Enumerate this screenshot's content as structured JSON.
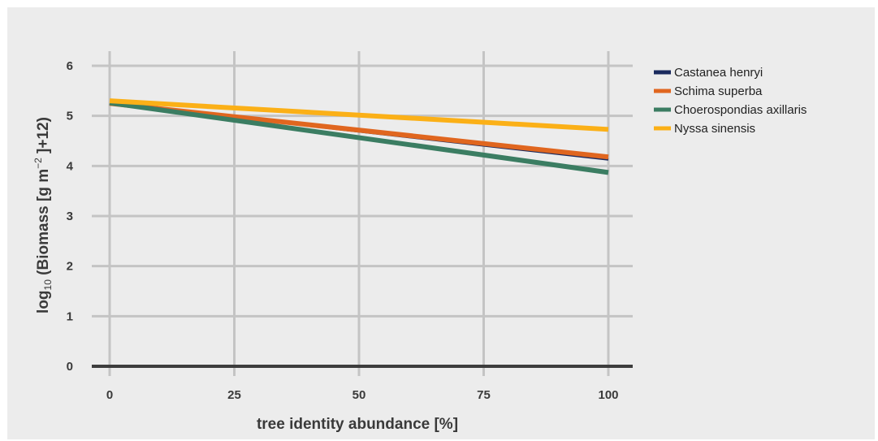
{
  "chart_data": {
    "type": "line",
    "xlabel": "tree identity abundance [%]",
    "ylabel_parts": {
      "log": "log",
      "base": "10",
      "open": " (Biomass [g m",
      "exp": "−2",
      "close": " ]+12)"
    },
    "xlim": [
      0,
      100
    ],
    "ylim": [
      0,
      6
    ],
    "x_ticks": [
      0,
      25,
      50,
      75,
      100
    ],
    "y_ticks": [
      0,
      1,
      2,
      3,
      4,
      5,
      6
    ],
    "x_tick_labels": [
      "0",
      "25",
      "50",
      "75",
      "100"
    ],
    "y_tick_labels": [
      "0",
      "1",
      "2",
      "3",
      "4",
      "5",
      "6"
    ],
    "grid": true,
    "legend_position": "right",
    "series": [
      {
        "name": "Castanea henryi",
        "color": "#1a2a5e",
        "x": [
          0,
          100
        ],
        "y": [
          5.25,
          4.13
        ]
      },
      {
        "name": "Schima superba",
        "color": "#e0661f",
        "x": [
          0,
          100
        ],
        "y": [
          5.25,
          4.18
        ]
      },
      {
        "name": "Choerospondias axillaris",
        "color": "#3b7d62",
        "x": [
          0,
          100
        ],
        "y": [
          5.26,
          3.87
        ]
      },
      {
        "name": "Nyssa sinensis",
        "color": "#fbb017",
        "x": [
          0,
          100
        ],
        "y": [
          5.3,
          4.73
        ]
      }
    ]
  }
}
